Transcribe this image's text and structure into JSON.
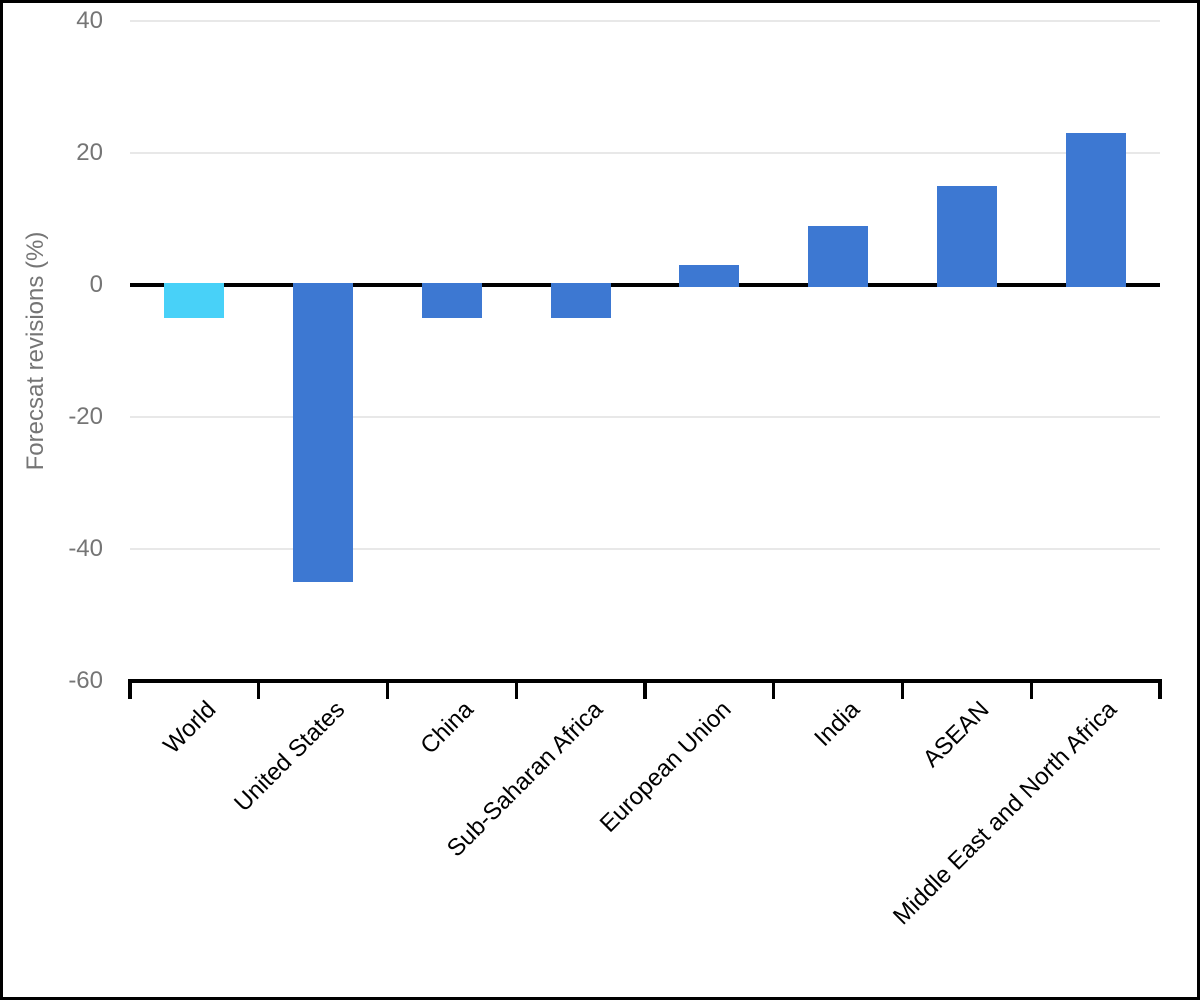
{
  "chart_data": {
    "type": "bar",
    "title": "",
    "xlabel": "",
    "ylabel": "Forecsat revisions (%)",
    "categories": [
      "World",
      "United States",
      "China",
      "Sub-Saharan Africa",
      "European Union",
      "India",
      "ASEAN",
      "Middle East and North Africa"
    ],
    "values": [
      -5,
      -45,
      -5,
      -5,
      3,
      9,
      15,
      23
    ],
    "ylim": [
      -60,
      40
    ],
    "yticks": [
      40,
      20,
      0,
      -20,
      -40,
      -60
    ],
    "grid": true,
    "legend": null,
    "colors": {
      "bar_default": "#3D78D2",
      "bar_highlight": "#48D1F8",
      "highlight_index": 0,
      "axis": "#000000",
      "gridline": "#E8E8E8",
      "y_tick_label": "#757575",
      "x_tick_label": "#000000",
      "y_axis_title": "#757575",
      "frame_border": "#000000",
      "background": "#FFFFFF"
    }
  }
}
